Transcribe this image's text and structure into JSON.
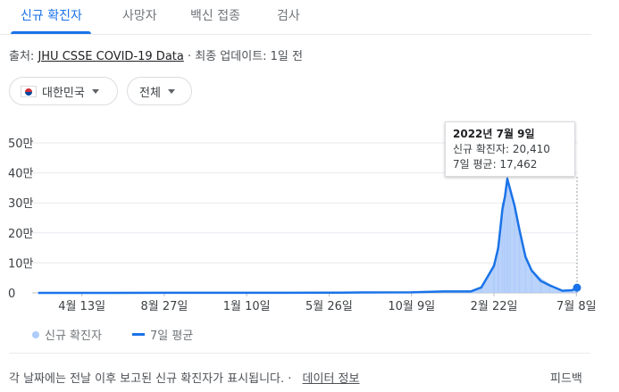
{
  "tabs": [
    {
      "label": "신규 확진자",
      "active": true
    },
    {
      "label": "사망자"
    },
    {
      "label": "백신 접종"
    },
    {
      "label": "검사"
    }
  ],
  "source": {
    "prefix": "출처: ",
    "link": "JHU CSSE COVID-19 Data",
    "suffix": " · 최종 업데이트: 1일 전"
  },
  "filters": {
    "region": "대한민국",
    "region_icon": "korea-flag-icon",
    "period": "전체"
  },
  "tooltip": {
    "date": "2022년 7월 9일",
    "cases": "신규 확진자: 20,410",
    "avg": "7일 평균: 17,462"
  },
  "legend": {
    "cases_label": "신규 확진자",
    "avg_label": "7일 평균"
  },
  "footer": {
    "note": "각 날짜에는 전날 이후 보고된 신규 확진자가 표시됩니다. ·",
    "data_link": "데이터 정보",
    "feedback": "피드백"
  },
  "colors": {
    "accent": "#1a73e8",
    "bars": "#aecbfa"
  },
  "chart_data": {
    "type": "area",
    "x": [
      "2020-02-01",
      "2020-04-13",
      "2020-06-01",
      "2020-08-27",
      "2020-11-01",
      "2021-01-10",
      "2021-03-15",
      "2021-05-26",
      "2021-07-20",
      "2021-10-09",
      "2021-12-01",
      "2022-01-15",
      "2022-02-01",
      "2022-02-22",
      "2022-03-01",
      "2022-03-08",
      "2022-03-12",
      "2022-03-16",
      "2022-03-20",
      "2022-03-28",
      "2022-04-05",
      "2022-04-15",
      "2022-04-25",
      "2022-05-10",
      "2022-05-25",
      "2022-06-15",
      "2022-07-01",
      "2022-07-09"
    ],
    "series": [
      {
        "name": "신규 확진자",
        "style": "bars",
        "values": [
          50,
          30,
          40,
          300,
          200,
          500,
          400,
          600,
          1500,
          2000,
          5000,
          4000,
          20000,
          100000,
          150000,
          300000,
          330000,
          400000,
          350000,
          300000,
          220000,
          130000,
          80000,
          50000,
          30000,
          8000,
          10000,
          20410
        ]
      },
      {
        "name": "7일 평균",
        "style": "line",
        "values": [
          40,
          30,
          40,
          280,
          200,
          500,
          400,
          600,
          1400,
          2000,
          5000,
          5000,
          18000,
          90000,
          150000,
          280000,
          320000,
          380000,
          350000,
          290000,
          210000,
          120000,
          75000,
          40000,
          25000,
          7000,
          9000,
          17462
        ]
      }
    ],
    "xticks": [
      "4월 13일",
      "8월 27일",
      "1월 10일",
      "5월 26일",
      "10월 9일",
      "2월 22일",
      "7월 8일"
    ],
    "yticks": [
      "0",
      "10만",
      "20만",
      "30만",
      "40만",
      "50만"
    ],
    "ylim": [
      0,
      500000
    ],
    "grid": true
  }
}
